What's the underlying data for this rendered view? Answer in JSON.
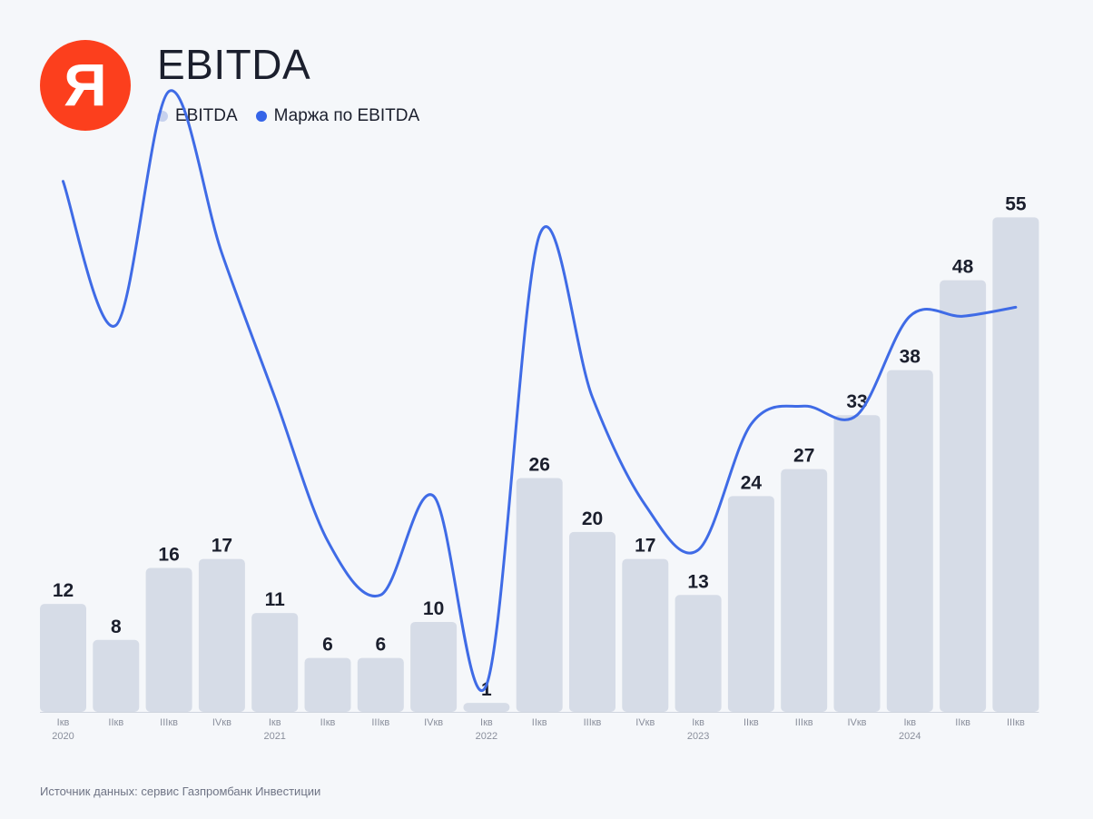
{
  "logo": {
    "letter": "Я",
    "color": "#fc3f1d"
  },
  "header": {
    "title": "EBITDA"
  },
  "legend": [
    {
      "label": "EBITDA",
      "color": "#c6d1ee"
    },
    {
      "label": "Маржа по EBITDA",
      "color": "#3564e8"
    }
  ],
  "source": "Источник данных: сервис Газпромбанк Инвестиции",
  "chart_data": {
    "type": "bar",
    "categories": [
      "Iкв",
      "IIкв",
      "IIIкв",
      "IVкв",
      "Iкв",
      "IIкв",
      "IIIкв",
      "IVкв",
      "Iкв",
      "IIкв",
      "IIIкв",
      "IVкв",
      "Iкв",
      "IIкв",
      "IIIкв",
      "IVкв",
      "Iкв",
      "IIкв",
      "IIIкв"
    ],
    "years": [
      "2020",
      "",
      "",
      "",
      "2021",
      "",
      "",
      "",
      "2022",
      "",
      "",
      "",
      "2023",
      "",
      "",
      "",
      "2024",
      "",
      ""
    ],
    "series": [
      {
        "name": "EBITDA",
        "type": "bar",
        "color": "#d6dce7",
        "values": [
          12,
          8,
          16,
          17,
          11,
          6,
          6,
          10,
          1,
          26,
          20,
          17,
          13,
          24,
          27,
          33,
          38,
          48,
          55
        ]
      },
      {
        "name": "Маржа по EBITDA",
        "type": "line",
        "color": "#3f6be6",
        "values": [
          59,
          43,
          69,
          51,
          35,
          19,
          13,
          24,
          3,
          53,
          35,
          23,
          18,
          32,
          34,
          33,
          44,
          44,
          45
        ]
      }
    ],
    "ylim": [
      0,
      62
    ],
    "grid": false,
    "legend_position": "top-left",
    "title": "EBITDA"
  }
}
